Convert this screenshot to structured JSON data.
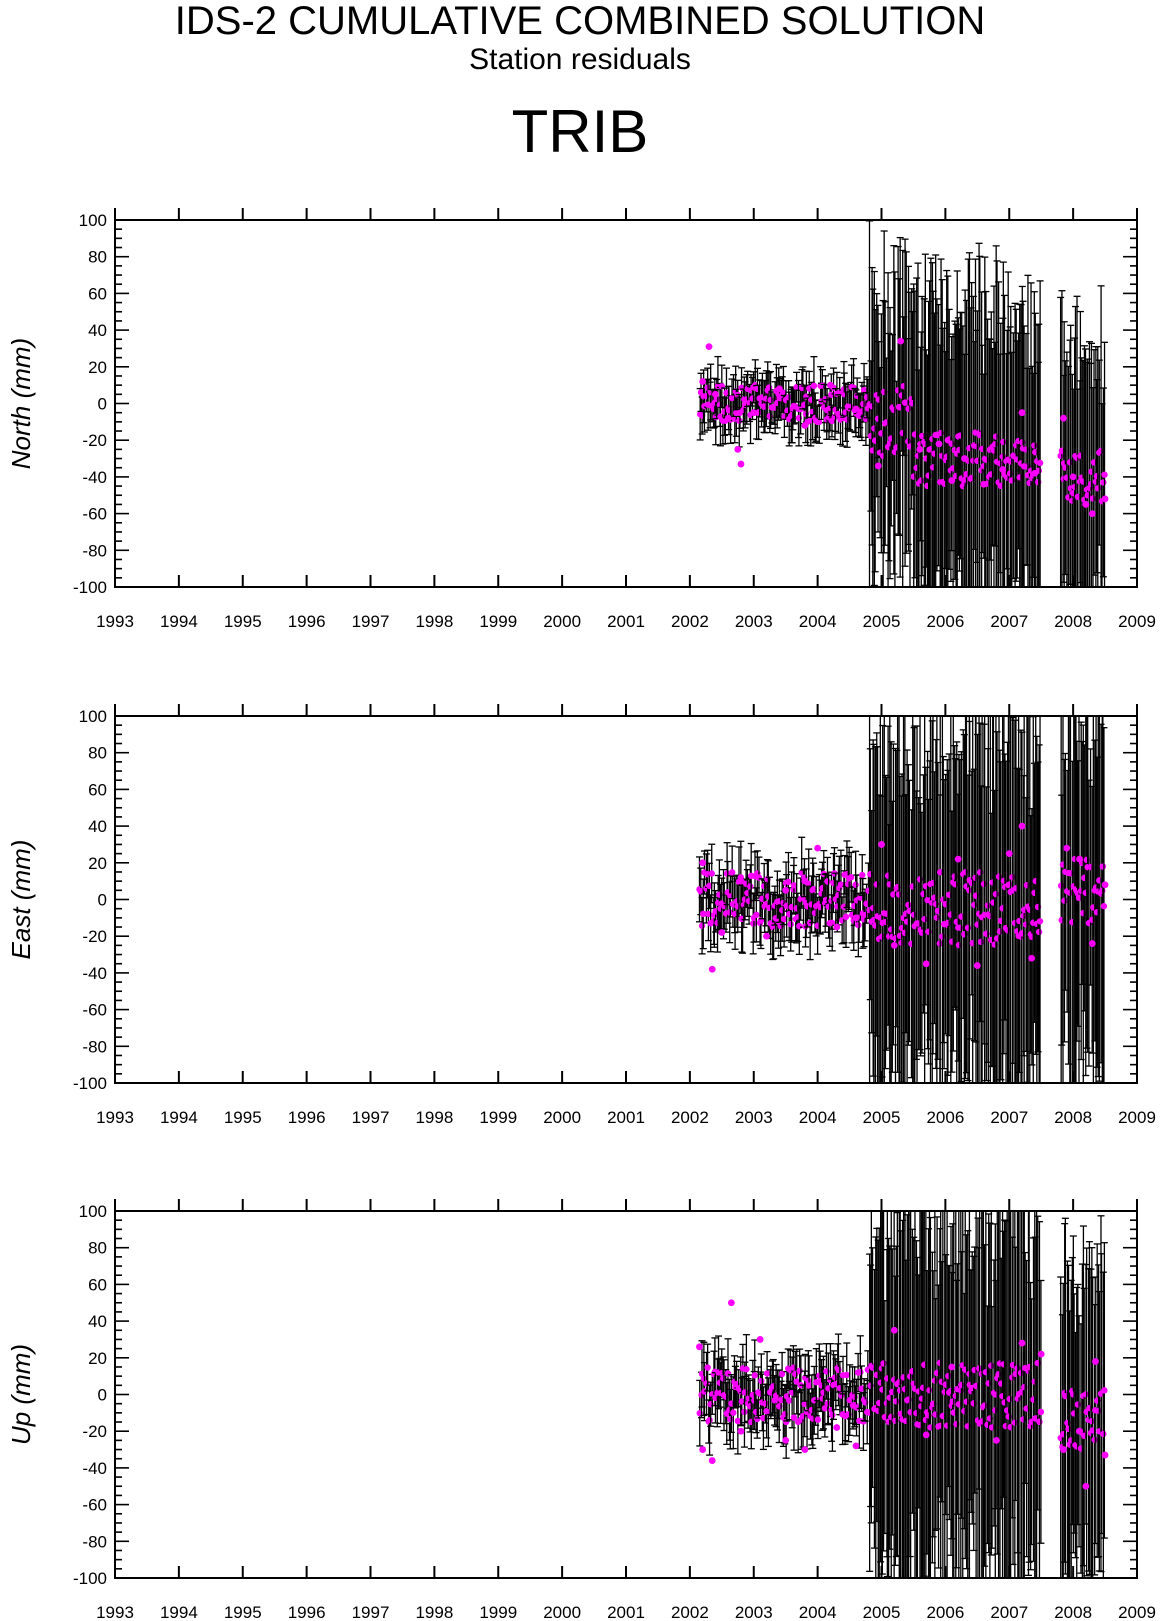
{
  "header": {
    "title": "IDS-2 CUMULATIVE COMBINED SOLUTION",
    "subtitle": "Station residuals",
    "station": "TRIB"
  },
  "colors": {
    "point": "#ff00ff",
    "errorbar": "#000000",
    "axis": "#000000"
  },
  "chart_data": [
    {
      "type": "scatter",
      "ylabel": "North (mm)",
      "xlim": [
        1993,
        2009
      ],
      "ylim": [
        -100,
        100
      ],
      "xticks": [
        1993,
        1994,
        1995,
        1996,
        1997,
        1998,
        1999,
        2000,
        2001,
        2002,
        2003,
        2004,
        2005,
        2006,
        2007,
        2008,
        2009
      ],
      "yticks": [
        -100,
        -80,
        -60,
        -40,
        -20,
        0,
        20,
        40,
        60,
        80,
        100
      ],
      "grid": false,
      "segments": [
        {
          "x": [
            2002.15,
            2004.8
          ],
          "center": 0,
          "amp": 10,
          "err": [
            8,
            16
          ]
        },
        {
          "x": [
            2004.8,
            2005.5
          ],
          "center": -10,
          "amp": 20,
          "err": [
            30,
            100
          ]
        },
        {
          "x": [
            2005.5,
            2007.5
          ],
          "center": -30,
          "amp": 15,
          "err": [
            50,
            110
          ]
        },
        {
          "x": [
            2007.8,
            2008.5
          ],
          "center": -40,
          "amp": 15,
          "err": [
            50,
            90
          ]
        }
      ],
      "series": [
        {
          "values": [
            [
              2002.2,
              12
            ],
            [
              2002.3,
              31
            ],
            [
              2002.4,
              5
            ],
            [
              2002.6,
              -8
            ],
            [
              2002.75,
              -25
            ],
            [
              2002.8,
              -33
            ],
            [
              2003.0,
              -5
            ],
            [
              2003.4,
              8
            ],
            [
              2003.8,
              -12
            ],
            [
              2004.2,
              10
            ],
            [
              2004.6,
              -3
            ],
            [
              2004.95,
              -34
            ],
            [
              2005.3,
              34
            ],
            [
              2005.6,
              -25
            ],
            [
              2005.9,
              -22
            ],
            [
              2006.1,
              -42
            ],
            [
              2006.3,
              -30
            ],
            [
              2006.6,
              -44
            ],
            [
              2006.9,
              -36
            ],
            [
              2007.2,
              -5
            ],
            [
              2007.4,
              -38
            ],
            [
              2007.85,
              -8
            ],
            [
              2008.0,
              -40
            ],
            [
              2008.2,
              -55
            ],
            [
              2008.3,
              -60
            ],
            [
              2008.5,
              -52
            ]
          ]
        }
      ]
    },
    {
      "type": "scatter",
      "ylabel": "East (mm)",
      "xlim": [
        1993,
        2009
      ],
      "ylim": [
        -100,
        100
      ],
      "xticks": [
        1993,
        1994,
        1995,
        1996,
        1997,
        1998,
        1999,
        2000,
        2001,
        2002,
        2003,
        2004,
        2005,
        2006,
        2007,
        2008,
        2009
      ],
      "yticks": [
        -100,
        -80,
        -60,
        -40,
        -20,
        0,
        20,
        40,
        60,
        80,
        100
      ],
      "grid": false,
      "segments": [
        {
          "x": [
            2002.15,
            2004.8
          ],
          "center": 0,
          "amp": 15,
          "err": [
            10,
            20
          ]
        },
        {
          "x": [
            2004.8,
            2007.5
          ],
          "center": -5,
          "amp": 20,
          "err": [
            60,
            130
          ]
        },
        {
          "x": [
            2007.8,
            2008.5
          ],
          "center": 5,
          "amp": 18,
          "err": [
            60,
            130
          ]
        }
      ],
      "series": [
        {
          "values": [
            [
              2002.2,
              20
            ],
            [
              2002.35,
              -38
            ],
            [
              2002.5,
              -18
            ],
            [
              2002.8,
              10
            ],
            [
              2003.2,
              -20
            ],
            [
              2003.5,
              5
            ],
            [
              2003.8,
              10
            ],
            [
              2004.0,
              28
            ],
            [
              2004.3,
              -15
            ],
            [
              2004.6,
              -10
            ],
            [
              2005.0,
              30
            ],
            [
              2005.2,
              -25
            ],
            [
              2005.7,
              -35
            ],
            [
              2006.2,
              22
            ],
            [
              2006.5,
              -36
            ],
            [
              2007.0,
              25
            ],
            [
              2007.2,
              40
            ],
            [
              2007.35,
              -32
            ],
            [
              2007.9,
              28
            ],
            [
              2008.1,
              22
            ],
            [
              2008.3,
              -24
            ],
            [
              2008.5,
              8
            ]
          ]
        }
      ]
    },
    {
      "type": "scatter",
      "ylabel": "Up (mm)",
      "xlim": [
        1993,
        2009
      ],
      "ylim": [
        -100,
        100
      ],
      "xticks": [
        1993,
        1994,
        1995,
        1996,
        1997,
        1998,
        1999,
        2000,
        2001,
        2002,
        2003,
        2004,
        2005,
        2006,
        2007,
        2008,
        2009
      ],
      "yticks": [
        -100,
        -80,
        -60,
        -40,
        -20,
        0,
        20,
        40,
        60,
        80,
        100
      ],
      "grid": false,
      "segments": [
        {
          "x": [
            2002.15,
            2004.8
          ],
          "center": 0,
          "amp": 15,
          "err": [
            10,
            20
          ]
        },
        {
          "x": [
            2004.8,
            2007.5
          ],
          "center": 0,
          "amp": 18,
          "err": [
            60,
            130
          ]
        },
        {
          "x": [
            2007.8,
            2008.5
          ],
          "center": -15,
          "amp": 18,
          "err": [
            60,
            100
          ]
        }
      ],
      "series": [
        {
          "values": [
            [
              2002.15,
              26
            ],
            [
              2002.2,
              -30
            ],
            [
              2002.35,
              -36
            ],
            [
              2002.65,
              50
            ],
            [
              2002.8,
              -20
            ],
            [
              2003.1,
              30
            ],
            [
              2003.5,
              -25
            ],
            [
              2003.8,
              -30
            ],
            [
              2004.3,
              -18
            ],
            [
              2004.6,
              -28
            ],
            [
              2005.2,
              35
            ],
            [
              2005.7,
              -22
            ],
            [
              2006.1,
              15
            ],
            [
              2006.8,
              -25
            ],
            [
              2007.2,
              28
            ],
            [
              2007.5,
              22
            ],
            [
              2007.85,
              -30
            ],
            [
              2008.1,
              -20
            ],
            [
              2008.2,
              -50
            ],
            [
              2008.35,
              18
            ],
            [
              2008.5,
              -33
            ]
          ]
        }
      ]
    }
  ]
}
